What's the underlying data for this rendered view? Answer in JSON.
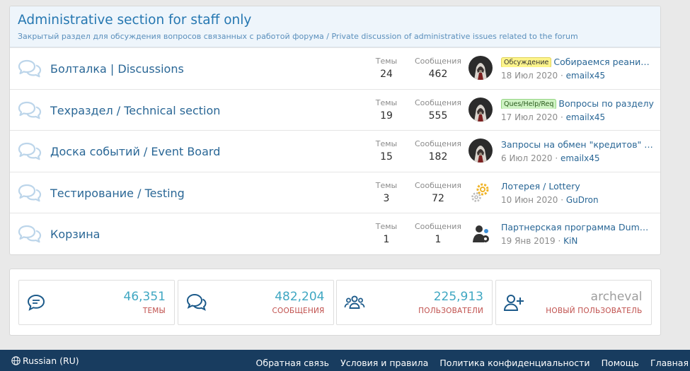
{
  "section": {
    "title": "Administrative section for staff only",
    "description": "Закрытый раздел для обсуждения вопросов связанных с работой форума / Private discussion of administrative issues related to the forum"
  },
  "labels": {
    "threads": "Темы",
    "messages": "Сообщения"
  },
  "forums": [
    {
      "title": "Болталка | Discussions",
      "threads": "24",
      "messages": "462",
      "last_prefix": "Обсуждение",
      "last_prefix_color": "yellow",
      "last_title": "Собираемся реанимировать",
      "last_date": "18 Июл 2020",
      "last_user": "emailx45",
      "avatar": "avatar-assassin"
    },
    {
      "title": "Техраздел / Technical section",
      "threads": "19",
      "messages": "555",
      "last_prefix": "Ques/Help/Req",
      "last_prefix_color": "green",
      "last_title": "Вопросы по разделу",
      "last_date": "17 Июл 2020",
      "last_user": "emailx45",
      "avatar": "avatar-assassin"
    },
    {
      "title": "Доска событий / Event Board",
      "threads": "15",
      "messages": "182",
      "last_prefix": "",
      "last_prefix_color": "",
      "last_title": "Запросы на обмен \"кредитов\" / Requests",
      "last_date": "6 Июл 2020",
      "last_user": "emailx45",
      "avatar": "avatar-assassin"
    },
    {
      "title": "Тестирование / Testing",
      "threads": "3",
      "messages": "72",
      "last_prefix": "",
      "last_prefix_color": "",
      "last_title": "Лотерея / Lottery",
      "last_date": "10 Июн 2020",
      "last_user": "GuDron",
      "avatar": "avatar-gears"
    },
    {
      "title": "Корзина",
      "threads": "1",
      "messages": "1",
      "last_prefix": "",
      "last_prefix_color": "",
      "last_title": "Партнерская программа Dumpz.ws",
      "last_date": "19 Янв 2019",
      "last_user": "KiN",
      "avatar": "avatar-admin"
    }
  ],
  "stats": [
    {
      "value": "46,351",
      "label": "ТЕМЫ",
      "icon": "comment-icon"
    },
    {
      "value": "482,204",
      "label": "СООБЩЕНИЯ",
      "icon": "comments-icon"
    },
    {
      "value": "225,913",
      "label": "ПОЛЬЗОВАТЕЛИ",
      "icon": "users-icon"
    },
    {
      "value": "archeval",
      "label": "НОВЫЙ ПОЛЬЗОВАТЕЛЬ",
      "icon": "user-plus-icon"
    }
  ],
  "footer": {
    "language": "Russian (RU)",
    "links": [
      "Обратная связь",
      "Условия и правила",
      "Политика конфиденциальности",
      "Помощь",
      "Главная"
    ]
  },
  "colors": {
    "accent": "#2577b1",
    "stat_value": "#3fa7c2",
    "stat_label": "#c0504d",
    "footer_bg": "#183c5f"
  }
}
